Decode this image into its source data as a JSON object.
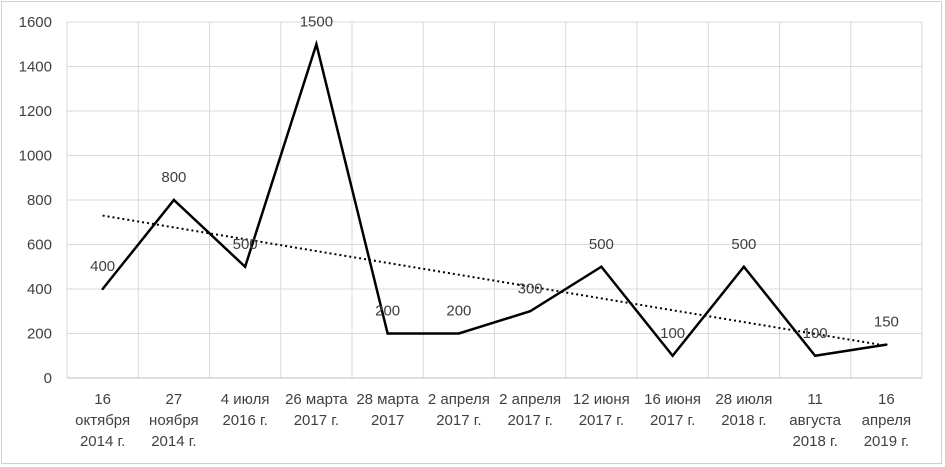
{
  "chart_data": {
    "type": "line",
    "title": "",
    "xlabel": "",
    "ylabel": "",
    "ylim": [
      0,
      1600
    ],
    "yticks": [
      0,
      200,
      400,
      600,
      800,
      1000,
      1200,
      1400,
      1600
    ],
    "grid": true,
    "legend": "none",
    "categories": [
      [
        "16",
        "октября",
        "2014 г."
      ],
      [
        "27",
        "ноября",
        "2014 г."
      ],
      [
        "4 июля",
        "2016 г."
      ],
      [
        "26 марта",
        "2017 г."
      ],
      [
        "28 марта",
        "2017"
      ],
      [
        "2 апреля",
        "2017 г."
      ],
      [
        "2 апреля",
        "2017 г."
      ],
      [
        "12 июня",
        "2017 г."
      ],
      [
        "16 июня",
        "2017 г."
      ],
      [
        "28 июля",
        "2018 г."
      ],
      [
        "11",
        "августа",
        "2018 г."
      ],
      [
        "16",
        "апреля",
        "2019 г."
      ]
    ],
    "series": [
      {
        "values": [
          400,
          800,
          500,
          1500,
          200,
          200,
          300,
          500,
          100,
          500,
          100,
          150
        ],
        "data_labels": [
          "400",
          "800",
          "500",
          "1500",
          "200",
          "200",
          "300",
          "500",
          "100",
          "500",
          "100",
          "150"
        ],
        "color": "#000000"
      }
    ],
    "trendline": {
      "type": "linear",
      "style": "dotted",
      "color": "#000000",
      "start": 730,
      "end": 145
    }
  }
}
